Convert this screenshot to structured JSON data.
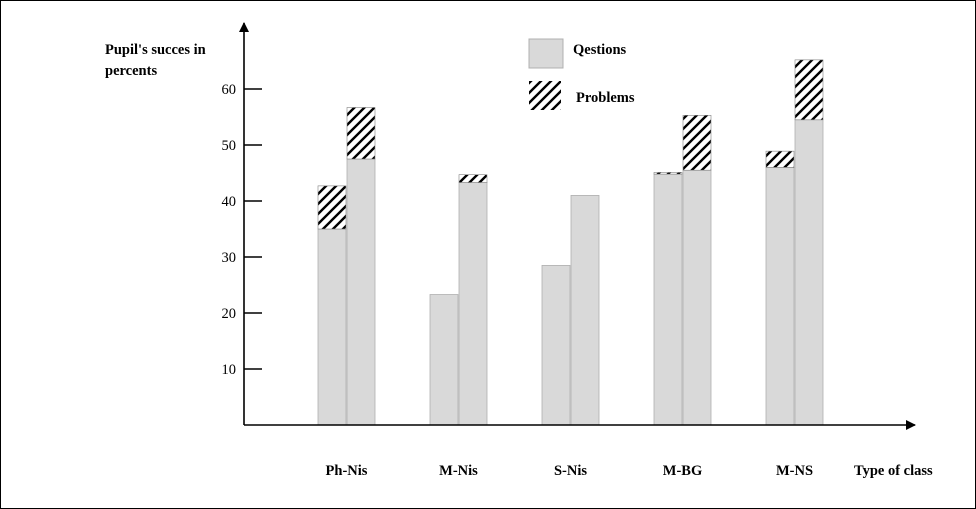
{
  "chart_data": {
    "type": "bar",
    "stacked": true,
    "title": "",
    "ylabel_lines": [
      "Pupil's succes in",
      "percents"
    ],
    "xlabel": "Type of class",
    "categories": [
      "Ph-Nis",
      "M-Nis",
      "S-Nis",
      "M-BG",
      "M-NS"
    ],
    "yticks": [
      10,
      20,
      30,
      40,
      50,
      60
    ],
    "ylim": [
      0,
      68
    ],
    "bars_per_category": 2,
    "series": [
      {
        "name": "Qestions",
        "fill": "solid-gray",
        "values": [
          [
            35,
            47.5
          ],
          [
            23.3,
            43.3
          ],
          [
            28.5,
            41
          ],
          [
            44.8,
            45.5
          ],
          [
            46,
            54.5
          ]
        ]
      },
      {
        "name": "Problems",
        "fill": "hatched",
        "values": [
          [
            7.7,
            9.2
          ],
          [
            0,
            1.4
          ],
          [
            0,
            0
          ],
          [
            0.3,
            9.8
          ],
          [
            2.9,
            10.7
          ]
        ]
      }
    ],
    "legend": {
      "position": "top-center",
      "entries": [
        "Qestions",
        "Problems"
      ]
    },
    "grid": false
  },
  "colors": {
    "bar_fill": "#d9d9d9",
    "bar_stroke": "#b0b0b0",
    "axis": "#000000",
    "text": "#000000"
  }
}
